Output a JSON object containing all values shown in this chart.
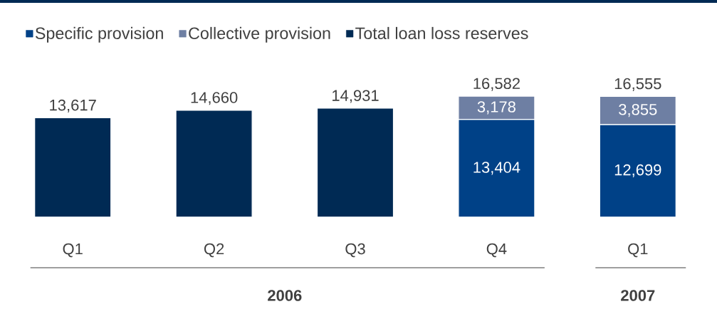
{
  "chart_data": {
    "type": "bar",
    "stacked": true,
    "legend": "top left",
    "categories": [
      "Q1",
      "Q2",
      "Q3",
      "Q4",
      "Q1"
    ],
    "series": [
      {
        "name": "Specific provision",
        "color": "#004187",
        "values": [
          null,
          null,
          null,
          13404,
          12699
        ],
        "value_labels": [
          null,
          null,
          null,
          "13,404",
          "12,699"
        ]
      },
      {
        "name": "Collective provision",
        "color": "#6e7fa3",
        "values": [
          null,
          null,
          null,
          3178,
          3855
        ],
        "value_labels": [
          null,
          null,
          null,
          "3,178",
          "3,855"
        ]
      },
      {
        "name": "Total loan loss reserves",
        "color": "#002a54",
        "values": [
          13617,
          14660,
          14931,
          null,
          null
        ],
        "value_labels": [
          "13,617",
          "14,660",
          "14,931",
          null,
          null
        ]
      }
    ],
    "totals": [
      null,
      null,
      null,
      "16,582",
      "16,555"
    ],
    "annotations": [
      "2006",
      "2007"
    ]
  }
}
